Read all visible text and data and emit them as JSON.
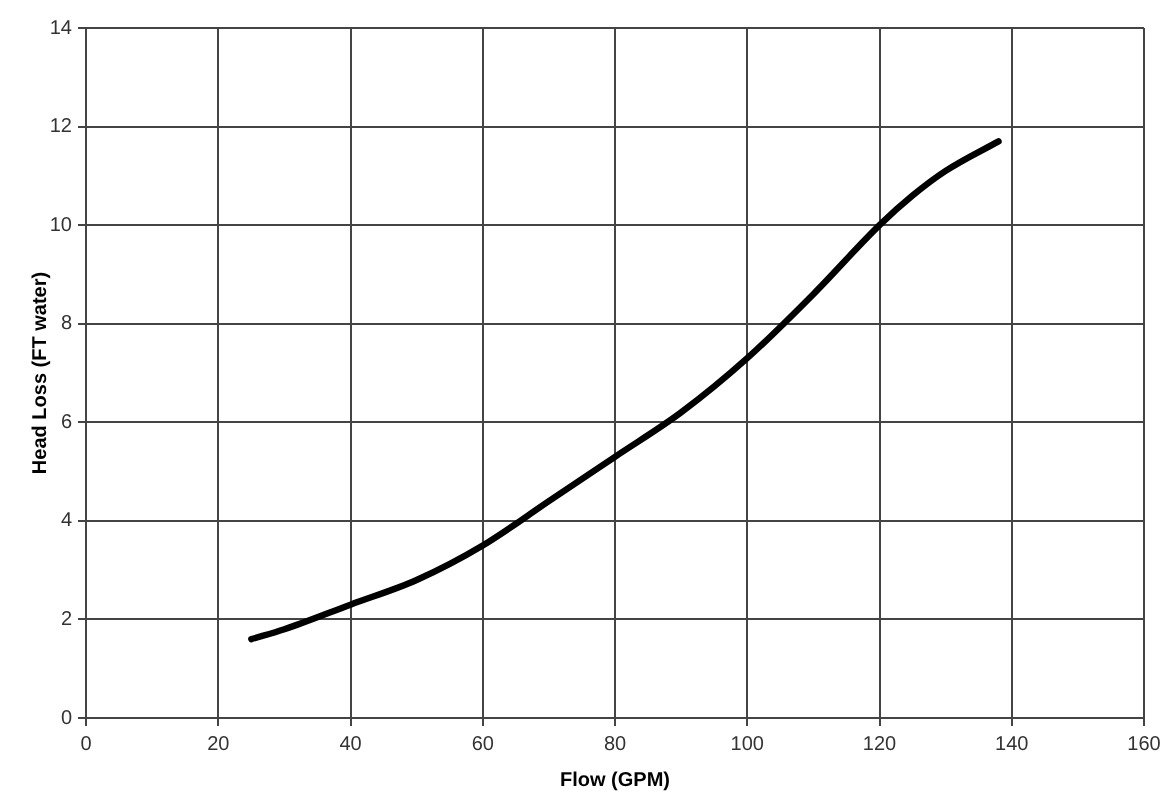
{
  "chart_data": {
    "type": "line",
    "xlabel": "Flow (GPM)",
    "ylabel": "Head Loss (FT water)",
    "x": [
      25,
      30,
      40,
      50,
      60,
      70,
      80,
      90,
      100,
      110,
      120,
      125,
      130,
      138
    ],
    "series": [
      {
        "color": "#000000",
        "values": [
          1.6,
          1.8,
          2.3,
          2.8,
          3.5,
          4.4,
          5.3,
          6.2,
          7.3,
          8.6,
          10.0,
          10.6,
          11.1,
          11.7
        ]
      }
    ],
    "xlim": [
      0,
      160
    ],
    "xticks": [
      0,
      20,
      40,
      60,
      80,
      100,
      120,
      140,
      160
    ],
    "ylim": [
      0,
      14
    ],
    "yticks": [
      0,
      2,
      4,
      6,
      8,
      10,
      12,
      14
    ],
    "grid": true,
    "legend": false,
    "marker": "none",
    "line_style": "solid"
  }
}
